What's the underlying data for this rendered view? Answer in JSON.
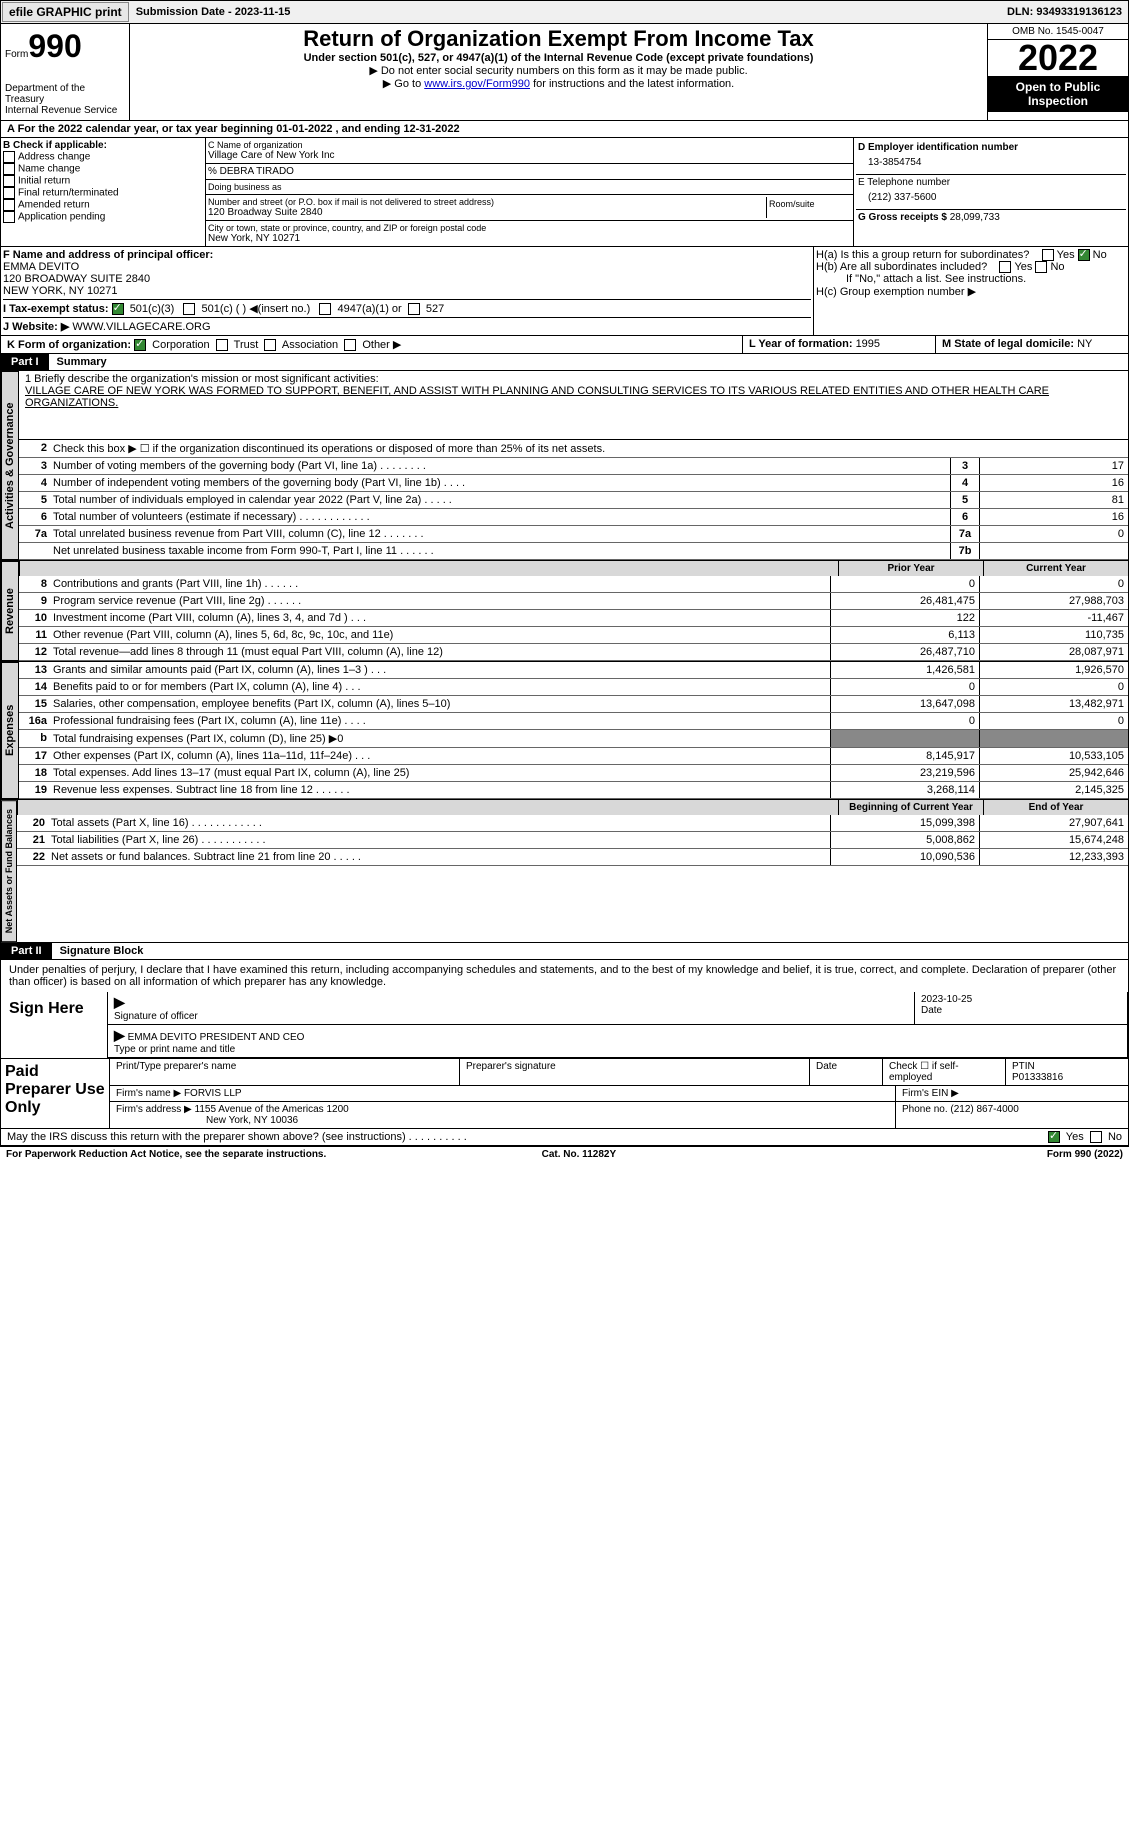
{
  "topbar": {
    "efile": "efile GRAPHIC print",
    "subdate_label": "Submission Date - ",
    "subdate": "2023-11-15",
    "dln_label": "DLN: ",
    "dln": "93493319136123"
  },
  "header": {
    "form_prefix": "Form",
    "form_no": "990",
    "title": "Return of Organization Exempt From Income Tax",
    "subtitle": "Under section 501(c), 527, or 4947(a)(1) of the Internal Revenue Code (except private foundations)",
    "note1": "▶ Do not enter social security numbers on this form as it may be made public.",
    "note2_a": "▶ Go to ",
    "note2_link": "www.irs.gov/Form990",
    "note2_b": " for instructions and the latest information.",
    "dept": "Department of the Treasury",
    "irs": "Internal Revenue Service",
    "omb": "OMB No. 1545-0047",
    "year": "2022",
    "open": "Open to Public Inspection"
  },
  "calyear": {
    "text": "A For the 2022 calendar year, or tax year beginning 01-01-2022    , and ending 12-31-2022"
  },
  "colB": {
    "title": "B Check if applicable:",
    "items": [
      "Address change",
      "Name change",
      "Initial return",
      "Final return/terminated",
      "Amended return",
      "Application pending"
    ]
  },
  "colC": {
    "name_label": "C Name of organization",
    "name": "Village Care of New York Inc",
    "co": "% DEBRA TIRADO",
    "dba": "Doing business as",
    "addr_label": "Number and street (or P.O. box if mail is not delivered to street address)",
    "room": "Room/suite",
    "addr": "120 Broadway Suite 2840",
    "city_label": "City or town, state or province, country, and ZIP or foreign postal code",
    "city": "New York, NY  10271"
  },
  "colD": {
    "ein_label": "D Employer identification number",
    "ein": "13-3854754",
    "tel_label": "E Telephone number",
    "tel": "(212) 337-5600",
    "gross_label": "G Gross receipts $ ",
    "gross": "28,099,733"
  },
  "F": {
    "label": "F  Name and address of principal officer:",
    "name": "EMMA DEVITO",
    "addr1": "120 BROADWAY SUITE 2840",
    "addr2": "NEW YORK, NY  10271"
  },
  "H": {
    "a": "H(a)  Is this a group return for subordinates?",
    "a_yes": "Yes",
    "a_no": "No",
    "b": "H(b)  Are all subordinates included?",
    "b_yes": "Yes",
    "b_no": "No",
    "b_note": "If \"No,\" attach a list. See instructions.",
    "c": "H(c)  Group exemption number ▶"
  },
  "I": {
    "label": "I    Tax-exempt status:",
    "c3": "501(c)(3)",
    "c": "501(c) (  ) ◀(insert no.)",
    "a1": "4947(a)(1) or",
    "s527": "527"
  },
  "J": {
    "label": "J    Website: ▶",
    "val": "  WWW.VILLAGECARE.ORG"
  },
  "K": {
    "label": "K Form of organization:",
    "corp": "Corporation",
    "trust": "Trust",
    "assoc": "Association",
    "other": "Other ▶"
  },
  "L": {
    "label": "L Year of formation: ",
    "val": "1995"
  },
  "M": {
    "label": "M State of legal domicile: ",
    "val": "NY"
  },
  "part1": {
    "tag": "Part I",
    "title": "Summary"
  },
  "mission": {
    "q": "1   Briefly describe the organization's mission or most significant activities:",
    "text": "VILLAGE CARE OF NEW YORK WAS FORMED TO SUPPORT, BENEFIT, AND ASSIST WITH PLANNING AND CONSULTING SERVICES TO ITS VARIOUS RELATED ENTITIES AND OTHER HEALTH CARE ORGANIZATIONS."
  },
  "vtabs": {
    "gov": "Activities & Governance",
    "rev": "Revenue",
    "exp": "Expenses",
    "net": "Net Assets or Fund Balances"
  },
  "gov_lines": [
    {
      "n": "2",
      "t": "Check this box ▶ ☐ if the organization discontinued its operations or disposed of more than 25% of its net assets."
    },
    {
      "n": "3",
      "t": "Number of voting members of the governing body (Part VI, line 1a)   .    .    .    .    .    .    .    .",
      "box": "3",
      "v": "17"
    },
    {
      "n": "4",
      "t": "Number of independent voting members of the governing body (Part VI, line 1b)   .    .    .    .",
      "box": "4",
      "v": "16"
    },
    {
      "n": "5",
      "t": "Total number of individuals employed in calendar year 2022 (Part V, line 2a)   .    .    .    .    .",
      "box": "5",
      "v": "81"
    },
    {
      "n": "6",
      "t": "Total number of volunteers (estimate if necessary)    .    .    .    .    .    .    .    .    .    .    .    .",
      "box": "6",
      "v": "16"
    },
    {
      "n": "7a",
      "t": "Total unrelated business revenue from Part VIII, column (C), line 12    .    .    .    .    .    .    .",
      "box": "7a",
      "v": "0"
    },
    {
      "n": "",
      "t": "Net unrelated business taxable income from Form 990-T, Part I, line 11   .    .    .    .    .    .",
      "box": "7b",
      "v": ""
    }
  ],
  "rev_hdr": {
    "prior": "Prior Year",
    "curr": "Current Year"
  },
  "rev_lines": [
    {
      "n": "8",
      "t": "Contributions and grants (Part VIII, line 1h)   .    .    .    .    .    .",
      "p": "0",
      "c": "0"
    },
    {
      "n": "9",
      "t": "Program service revenue (Part VIII, line 2g)   .    .    .    .    .    .",
      "p": "26,481,475",
      "c": "27,988,703"
    },
    {
      "n": "10",
      "t": "Investment income (Part VIII, column (A), lines 3, 4, and 7d )    .    .    .",
      "p": "122",
      "c": "-11,467"
    },
    {
      "n": "11",
      "t": "Other revenue (Part VIII, column (A), lines 5, 6d, 8c, 9c, 10c, and 11e)",
      "p": "6,113",
      "c": "110,735"
    },
    {
      "n": "12",
      "t": "Total revenue—add lines 8 through 11 (must equal Part VIII, column (A), line 12)",
      "p": "26,487,710",
      "c": "28,087,971"
    }
  ],
  "exp_lines": [
    {
      "n": "13",
      "t": "Grants and similar amounts paid (Part IX, column (A), lines 1–3 )   .    .    .",
      "p": "1,426,581",
      "c": "1,926,570"
    },
    {
      "n": "14",
      "t": "Benefits paid to or for members (Part IX, column (A), line 4)   .    .    .",
      "p": "0",
      "c": "0"
    },
    {
      "n": "15",
      "t": "Salaries, other compensation, employee benefits (Part IX, column (A), lines 5–10)",
      "p": "13,647,098",
      "c": "13,482,971"
    },
    {
      "n": "16a",
      "t": "Professional fundraising fees (Part IX, column (A), line 11e)   .    .    .    .",
      "p": "0",
      "c": "0"
    },
    {
      "n": "b",
      "t": "Total fundraising expenses (Part IX, column (D), line 25) ▶0",
      "grey": true
    },
    {
      "n": "17",
      "t": "Other expenses (Part IX, column (A), lines 11a–11d, 11f–24e)   .    .    .",
      "p": "8,145,917",
      "c": "10,533,105"
    },
    {
      "n": "18",
      "t": "Total expenses. Add lines 13–17 (must equal Part IX, column (A), line 25)",
      "p": "23,219,596",
      "c": "25,942,646"
    },
    {
      "n": "19",
      "t": "Revenue less expenses. Subtract line 18 from line 12   .    .    .    .    .    .",
      "p": "3,268,114",
      "c": "2,145,325"
    }
  ],
  "net_hdr": {
    "beg": "Beginning of Current Year",
    "end": "End of Year"
  },
  "net_lines": [
    {
      "n": "20",
      "t": "Total assets (Part X, line 16)   .    .    .    .    .    .    .    .    .    .    .    .",
      "p": "15,099,398",
      "c": "27,907,641"
    },
    {
      "n": "21",
      "t": "Total liabilities (Part X, line 26)   .    .    .    .    .    .    .    .    .    .    .",
      "p": "5,008,862",
      "c": "15,674,248"
    },
    {
      "n": "22",
      "t": "Net assets or fund balances. Subtract line 21 from line 20   .    .    .    .    .",
      "p": "10,090,536",
      "c": "12,233,393"
    }
  ],
  "part2": {
    "tag": "Part II",
    "title": "Signature Block"
  },
  "sig": {
    "decl": "Under penalties of perjury, I declare that I have examined this return, including accompanying schedules and statements, and to the best of my knowledge and belief, it is true, correct, and complete. Declaration of preparer (other than officer) is based on all information of which preparer has any knowledge.",
    "here": "Sign Here",
    "sig_label": "Signature of officer",
    "date_label": "Date",
    "date": "2023-10-25",
    "name": "EMMA DEVITO  PRESIDENT AND CEO",
    "name_label": "Type or print name and title"
  },
  "paid": {
    "title": "Paid Preparer Use Only",
    "print_label": "Print/Type preparer's name",
    "prep_sig": "Preparer's signature",
    "date": "Date",
    "check": "Check ☐ if self-employed",
    "ptin_label": "PTIN",
    "ptin": "P01333816",
    "firm_label": "Firm's name    ▶",
    "firm": "FORVIS LLP",
    "ein_label": "Firm's EIN ▶",
    "addr_label": "Firm's address ▶",
    "addr": "1155 Avenue of the Americas 1200",
    "addr2": "New York, NY  10036",
    "phone_label": "Phone no. ",
    "phone": "(212) 867-4000"
  },
  "discuss": {
    "q": "May the IRS discuss this return with the preparer shown above? (see instructions)    .    .    .    .    .    .    .    .    .    .",
    "yes": "Yes",
    "no": "No"
  },
  "footer": {
    "l": "For Paperwork Reduction Act Notice, see the separate instructions.",
    "m": "Cat. No. 11282Y",
    "r": "Form 990 (2022)"
  }
}
